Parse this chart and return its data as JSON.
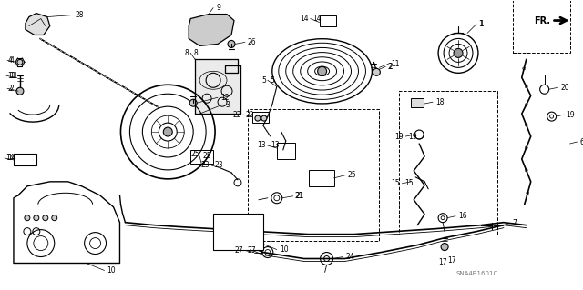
{
  "background_color": "#ffffff",
  "diagram_color": "#000000",
  "watermark": "SNA4B1601C",
  "fr_label": "FR.",
  "fig_width": 6.4,
  "fig_height": 3.19,
  "dpi": 100,
  "img_gray": true
}
